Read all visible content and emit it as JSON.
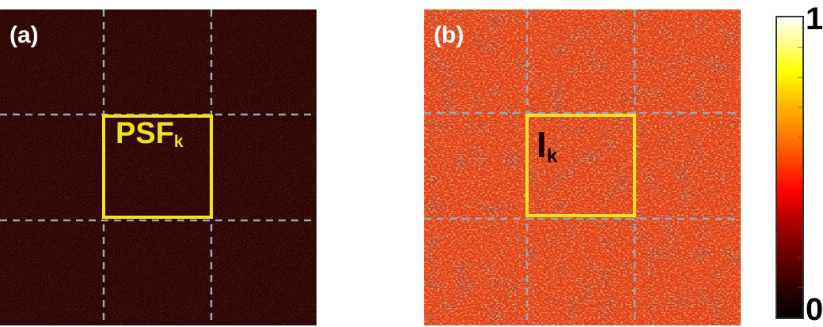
{
  "panels": [
    {
      "label": "(a)",
      "box_label_main": "PSF",
      "box_label_sub": "k",
      "box_label_color": "#f2e21f",
      "noise_base": "#3a0705",
      "noise_mode": "dark"
    },
    {
      "label": "(b)",
      "box_label_main": "I",
      "box_label_sub": "k",
      "box_label_color": "#1a0000",
      "noise_base": "#e8421a",
      "noise_mode": "bright"
    }
  ],
  "box_color": "#f2e21f",
  "grid_color": "#9aa6b0",
  "colorbar": {
    "max_label": "1",
    "min_label": "0",
    "colormap": "hot"
  }
}
